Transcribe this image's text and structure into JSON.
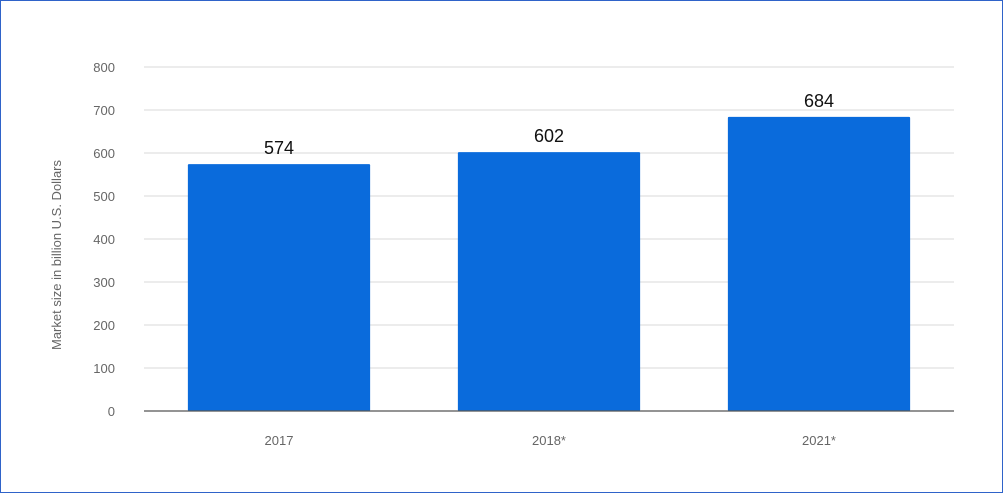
{
  "chart_data": {
    "type": "bar",
    "title": "",
    "xlabel": "",
    "ylabel": "Market size in billion U.S. Dollars",
    "categories": [
      "2017",
      "2018*",
      "2021*"
    ],
    "values": [
      574,
      602,
      684
    ],
    "data_labels": [
      "574",
      "602",
      "684"
    ],
    "ylim": [
      0,
      800
    ],
    "yticks": [
      "0",
      "100",
      "200",
      "300",
      "400",
      "500",
      "600",
      "700",
      "800"
    ],
    "grid": true,
    "bar_color": "#0a6bdc"
  },
  "frame_border_color": "#2f63c9"
}
